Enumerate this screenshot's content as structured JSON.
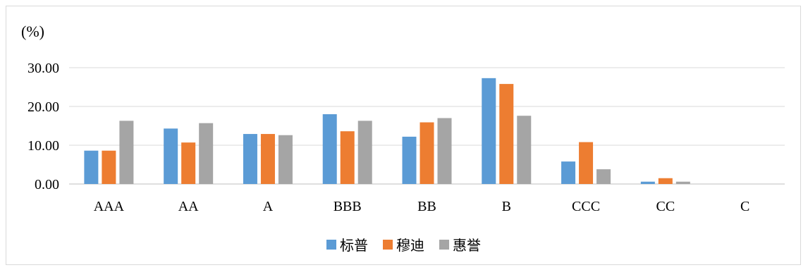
{
  "chart_data": {
    "type": "bar",
    "unit_label": "(%)",
    "categories": [
      "AAA",
      "AA",
      "A",
      "BBB",
      "BB",
      "B",
      "CCC",
      "CC",
      "C"
    ],
    "series": [
      {
        "name": "标普",
        "color": "#5b9bd5",
        "values": [
          8.6,
          14.3,
          12.9,
          18.0,
          12.2,
          27.3,
          5.8,
          0.6,
          0.0
        ]
      },
      {
        "name": "穆迪",
        "color": "#ed7d31",
        "values": [
          8.6,
          10.7,
          12.9,
          13.6,
          15.9,
          25.8,
          10.8,
          1.5,
          0.0
        ]
      },
      {
        "name": "惠誉",
        "color": "#a5a5a5",
        "values": [
          16.3,
          15.7,
          12.6,
          16.3,
          17.0,
          17.6,
          3.8,
          0.6,
          0.0
        ]
      }
    ],
    "yticks": [
      "0.00",
      "10.00",
      "20.00",
      "30.00"
    ],
    "ylim": [
      0,
      30
    ],
    "grid": true,
    "legend_position": "bottom"
  }
}
